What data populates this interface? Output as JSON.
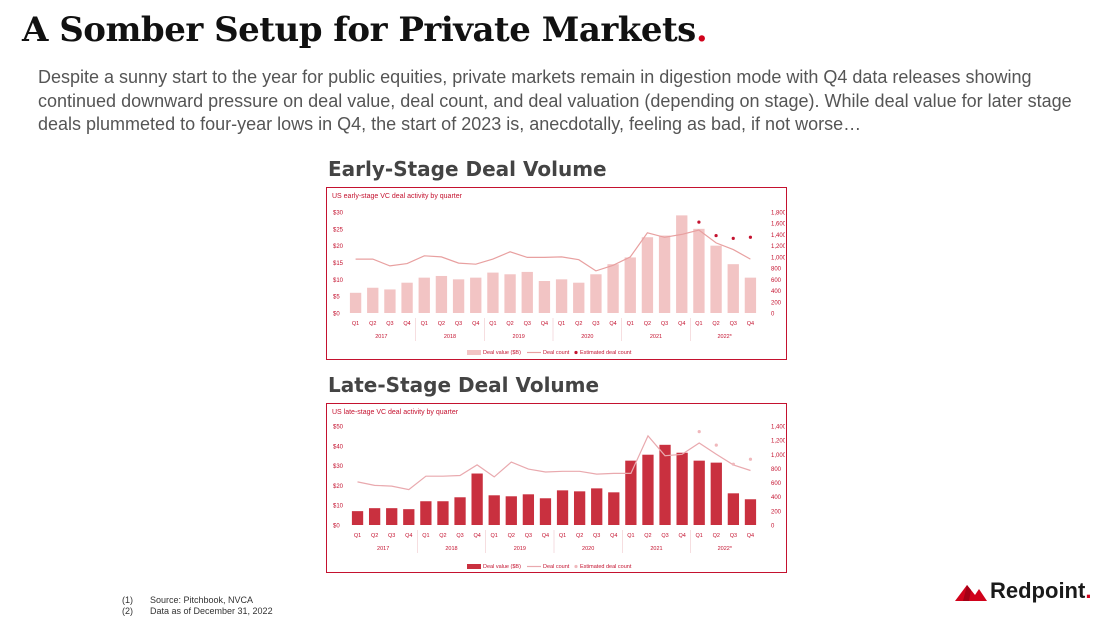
{
  "header": {
    "title": "A Somber Setup for Private Markets",
    "title_dot": ".",
    "subtitle": "Despite a sunny start to the year for public equities, private markets remain in digestion mode with Q4 data releases showing continued downward pressure on deal value, deal count, and deal valuation (depending on stage). While deal value for later stage deals plummeted to four-year lows in Q4, the start of 2023 is, anecdotally, feeling as bad, if not worse…"
  },
  "sections": {
    "early_title": "Early-Stage Deal Volume",
    "late_title": "Late-Stage Deal Volume"
  },
  "colors": {
    "early_bar": "#f2c4c4",
    "early_line": "#e8a0a0",
    "late_bar": "#c9303f",
    "late_line": "#e9a9ae",
    "estimate": "#c4122f",
    "late_estimate": "#f0b8bc",
    "border": "#c4122f"
  },
  "chart_data": [
    {
      "type": "bar",
      "title": "US early-stage VC deal activity by quarter",
      "categories": [
        "Q1",
        "Q2",
        "Q3",
        "Q4",
        "Q1",
        "Q2",
        "Q3",
        "Q4",
        "Q1",
        "Q2",
        "Q3",
        "Q4",
        "Q1",
        "Q2",
        "Q3",
        "Q4",
        "Q1",
        "Q2",
        "Q3",
        "Q4",
        "Q1",
        "Q2",
        "Q3",
        "Q4"
      ],
      "year_labels": [
        "2017",
        "2018",
        "2019",
        "2020",
        "2021",
        "2022*"
      ],
      "left_ticks": [
        "$0",
        "$5",
        "$10",
        "$15",
        "$20",
        "$25",
        "$30"
      ],
      "right_ticks": [
        "0",
        "200",
        "400",
        "600",
        "800",
        "1,000",
        "1,200",
        "1,400",
        "1,600",
        "1,800"
      ],
      "ylim": [
        0,
        30
      ],
      "y2lim": [
        0,
        1800
      ],
      "series": [
        {
          "name": "Deal value ($B)",
          "kind": "bar",
          "axis": "left",
          "values": [
            6.0,
            7.5,
            7.0,
            9.0,
            10.5,
            11.0,
            10.0,
            10.5,
            12.0,
            11.5,
            12.2,
            9.5,
            10.0,
            9.0,
            11.5,
            14.5,
            16.5,
            22.5,
            23.0,
            29.0,
            25.0,
            20.0,
            14.5,
            10.5
          ]
        },
        {
          "name": "Deal count",
          "kind": "line",
          "axis": "right",
          "values": [
            960,
            960,
            840,
            880,
            1020,
            1000,
            890,
            870,
            960,
            1090,
            990,
            990,
            1000,
            950,
            750,
            850,
            1000,
            1430,
            1350,
            1400,
            1480,
            1250,
            1130,
            960
          ]
        },
        {
          "name": "Estimated deal count",
          "kind": "points",
          "axis": "right",
          "values": [
            null,
            null,
            null,
            null,
            null,
            null,
            null,
            null,
            null,
            null,
            null,
            null,
            null,
            null,
            null,
            null,
            null,
            null,
            null,
            null,
            1620,
            1380,
            1330,
            1350
          ]
        }
      ]
    },
    {
      "type": "bar",
      "title": "US late-stage VC deal activity by quarter",
      "categories": [
        "Q1",
        "Q2",
        "Q3",
        "Q4",
        "Q1",
        "Q2",
        "Q3",
        "Q4",
        "Q1",
        "Q2",
        "Q3",
        "Q4",
        "Q1",
        "Q2",
        "Q3",
        "Q4",
        "Q1",
        "Q2",
        "Q3",
        "Q4",
        "Q1",
        "Q2",
        "Q3",
        "Q4"
      ],
      "year_labels": [
        "2017",
        "2018",
        "2019",
        "2020",
        "2021",
        "2022*"
      ],
      "left_ticks": [
        "$0",
        "$10",
        "$20",
        "$30",
        "$40",
        "$50"
      ],
      "right_ticks": [
        "0",
        "200",
        "400",
        "600",
        "800",
        "1,000",
        "1,200",
        "1,400"
      ],
      "ylim": [
        0,
        50
      ],
      "y2lim": [
        0,
        1400
      ],
      "series": [
        {
          "name": "Deal value ($B)",
          "kind": "bar",
          "axis": "left",
          "values": [
            7.0,
            8.5,
            8.5,
            8.0,
            12.0,
            12.0,
            14.0,
            26.0,
            15.0,
            14.5,
            15.5,
            13.5,
            17.5,
            17.0,
            18.5,
            16.5,
            32.5,
            35.5,
            40.5,
            36.5,
            32.5,
            31.5,
            16.0,
            13.0
          ]
        },
        {
          "name": "Deal count",
          "kind": "line",
          "axis": "right",
          "values": [
            610,
            560,
            550,
            500,
            690,
            690,
            700,
            850,
            680,
            890,
            790,
            750,
            760,
            760,
            720,
            730,
            730,
            1260,
            980,
            1000,
            1160,
            1000,
            850,
            770
          ]
        },
        {
          "name": "Estimated deal count",
          "kind": "points",
          "axis": "right",
          "values": [
            null,
            null,
            null,
            null,
            null,
            null,
            null,
            null,
            null,
            null,
            null,
            null,
            null,
            null,
            null,
            null,
            null,
            null,
            null,
            null,
            1320,
            1130,
            860,
            930
          ]
        }
      ]
    }
  ],
  "footnotes": [
    {
      "num": "(1)",
      "text": "Source: Pitchbook, NVCA"
    },
    {
      "num": "(2)",
      "text": "Data as of December 31, 2022"
    }
  ],
  "logo": {
    "name": "Redpoint",
    "dot": ".",
    "icon": "mountain-peak-icon"
  }
}
